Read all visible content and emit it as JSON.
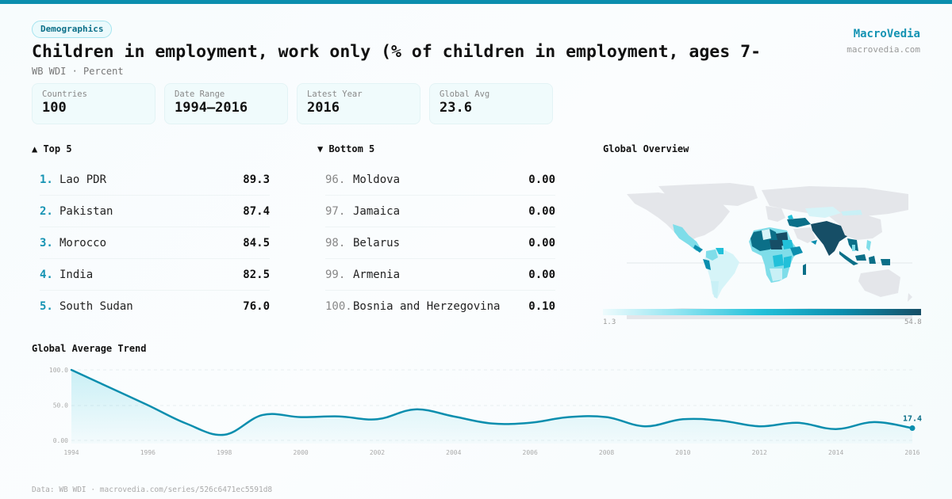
{
  "header": {
    "category": "Demographics",
    "title": "Children in employment, work only (% of children in employment, ages 7-",
    "subtitle": "WB WDI · Percent",
    "brand_name": "MacroVedia",
    "brand_url": "macrovedia.com"
  },
  "stats": [
    {
      "label": "Countries",
      "value": "100"
    },
    {
      "label": "Date Range",
      "value": "1994–2016"
    },
    {
      "label": "Latest Year",
      "value": "2016"
    },
    {
      "label": "Global Avg",
      "value": "23.6"
    }
  ],
  "top5": {
    "title": "▲ Top 5",
    "items": [
      {
        "rank": "1.",
        "name": "Lao PDR",
        "value": "89.3"
      },
      {
        "rank": "2.",
        "name": "Pakistan",
        "value": "87.4"
      },
      {
        "rank": "3.",
        "name": "Morocco",
        "value": "84.5"
      },
      {
        "rank": "4.",
        "name": "India",
        "value": "82.5"
      },
      {
        "rank": "5.",
        "name": "South Sudan",
        "value": "76.0"
      }
    ]
  },
  "bottom5": {
    "title": "▼ Bottom 5",
    "items": [
      {
        "rank": "96.",
        "name": "Moldova",
        "value": "0.00"
      },
      {
        "rank": "97.",
        "name": "Jamaica",
        "value": "0.00"
      },
      {
        "rank": "98.",
        "name": "Belarus",
        "value": "0.00"
      },
      {
        "rank": "99.",
        "name": "Armenia",
        "value": "0.00"
      },
      {
        "rank": "100.",
        "name": "Bosnia and Herzegovina",
        "value": "0.10"
      }
    ]
  },
  "map": {
    "title": "Global Overview",
    "legend_min": "1.3",
    "legend_max": "54.8",
    "colors": {
      "low": "#eefbfd",
      "mid": "#22c0d9",
      "high": "#164e66",
      "nodata": "#e4e6ea"
    }
  },
  "trend": {
    "title": "Global Average Trend",
    "last_label": "17.4",
    "line_color": "#0b8eae"
  },
  "footer": {
    "text": "Data: WB WDI · macrovedia.com/series/526c6471ec5591d8"
  },
  "chart_data": {
    "type": "line",
    "title": "Global Average Trend",
    "xlabel": "",
    "ylabel": "",
    "x": [
      1994,
      1995,
      1996,
      1997,
      1998,
      1999,
      2000,
      2001,
      2002,
      2003,
      2004,
      2005,
      2006,
      2007,
      2008,
      2009,
      2010,
      2011,
      2012,
      2013,
      2014,
      2015,
      2016
    ],
    "series": [
      {
        "name": "Global Average",
        "values": [
          100.0,
          75.0,
          50.0,
          24.0,
          8.0,
          36.0,
          33.0,
          34.0,
          30.0,
          44.0,
          34.0,
          24.0,
          25.0,
          33.0,
          33.0,
          20.0,
          30.0,
          28.0,
          20.0,
          25.0,
          16.0,
          26.0,
          17.4
        ]
      }
    ],
    "x_ticks": [
      "1994",
      "1996",
      "1998",
      "2000",
      "2002",
      "2004",
      "2006",
      "2008",
      "2010",
      "2012",
      "2014",
      "2016"
    ],
    "y_ticks": [
      "0.00",
      "50.0",
      "100.0"
    ],
    "ylim": [
      0,
      100
    ],
    "grid": true,
    "legend": "none",
    "annotations": [
      {
        "x": 2016,
        "y": 17.4,
        "text": "17.4"
      }
    ]
  }
}
